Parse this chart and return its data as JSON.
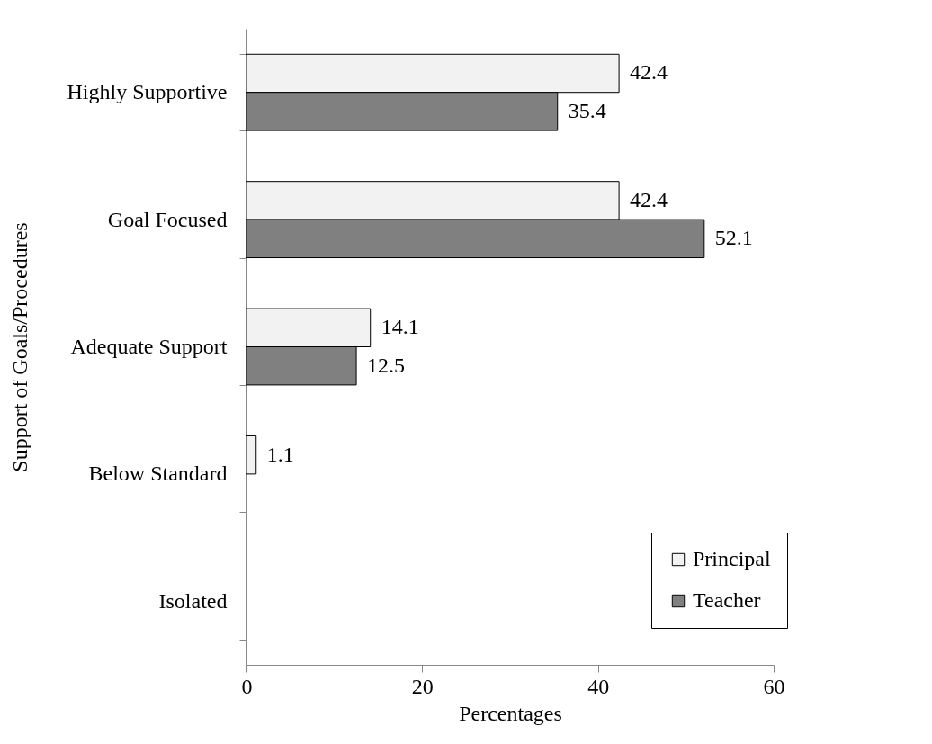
{
  "chart_data": {
    "type": "bar",
    "orientation": "horizontal",
    "xlabel": "Percentages",
    "ylabel": "Support of Goals/Procedures",
    "categories": [
      "Highly Supportive",
      "Goal Focused",
      "Adequate Support",
      "Below Standard",
      "Isolated"
    ],
    "series": [
      {
        "name": "Principal",
        "color": "#f2f2f2",
        "values": [
          42.4,
          42.4,
          14.1,
          1.1,
          null
        ]
      },
      {
        "name": "Teacher",
        "color": "#808080",
        "values": [
          35.4,
          52.1,
          12.5,
          null,
          null
        ]
      }
    ],
    "xlim": [
      0,
      60
    ],
    "xticks": [
      0,
      20,
      40,
      60
    ],
    "grid": false,
    "legend": "bottom right",
    "data_labels": true
  }
}
